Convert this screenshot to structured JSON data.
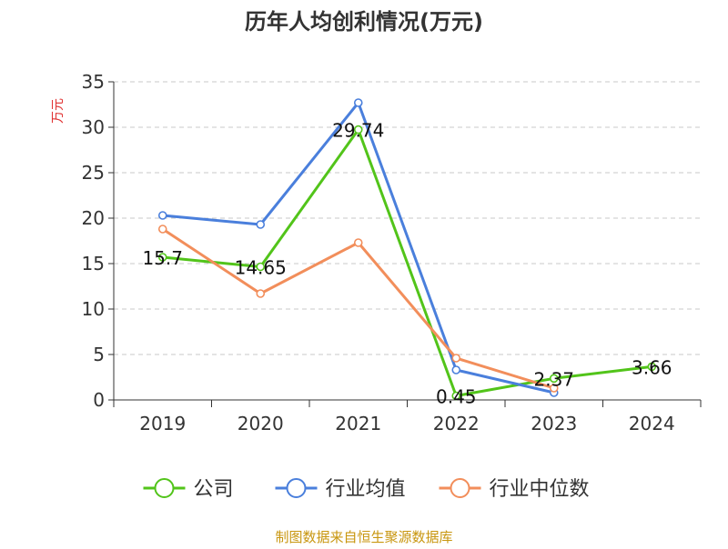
{
  "chart_data": {
    "type": "line",
    "title": "历年人均创利情况(万元)",
    "ylabel": "万元",
    "xlabel": "",
    "ylim": [
      0,
      35
    ],
    "yticks": [
      0,
      5,
      10,
      15,
      20,
      25,
      30,
      35
    ],
    "categories": [
      "2019",
      "2020",
      "2021",
      "2022",
      "2023",
      "2024"
    ],
    "grid": true,
    "legend_position": "bottom",
    "series": [
      {
        "name": "公司",
        "color": "#52c41a",
        "values": [
          15.7,
          14.65,
          29.74,
          0.45,
          2.37,
          3.66
        ],
        "labels": [
          "15.7",
          "14.65",
          "29.74",
          "0.45",
          "2.37",
          "3.66"
        ]
      },
      {
        "name": "行业均值",
        "color": "#4a7fdc",
        "values": [
          20.3,
          19.3,
          32.7,
          3.3,
          0.8,
          null
        ]
      },
      {
        "name": "行业中位数",
        "color": "#f28e5b",
        "values": [
          18.8,
          11.7,
          17.3,
          4.6,
          1.3,
          null
        ]
      }
    ]
  },
  "footer": {
    "source": "制图数据来自恒生聚源数据库"
  }
}
